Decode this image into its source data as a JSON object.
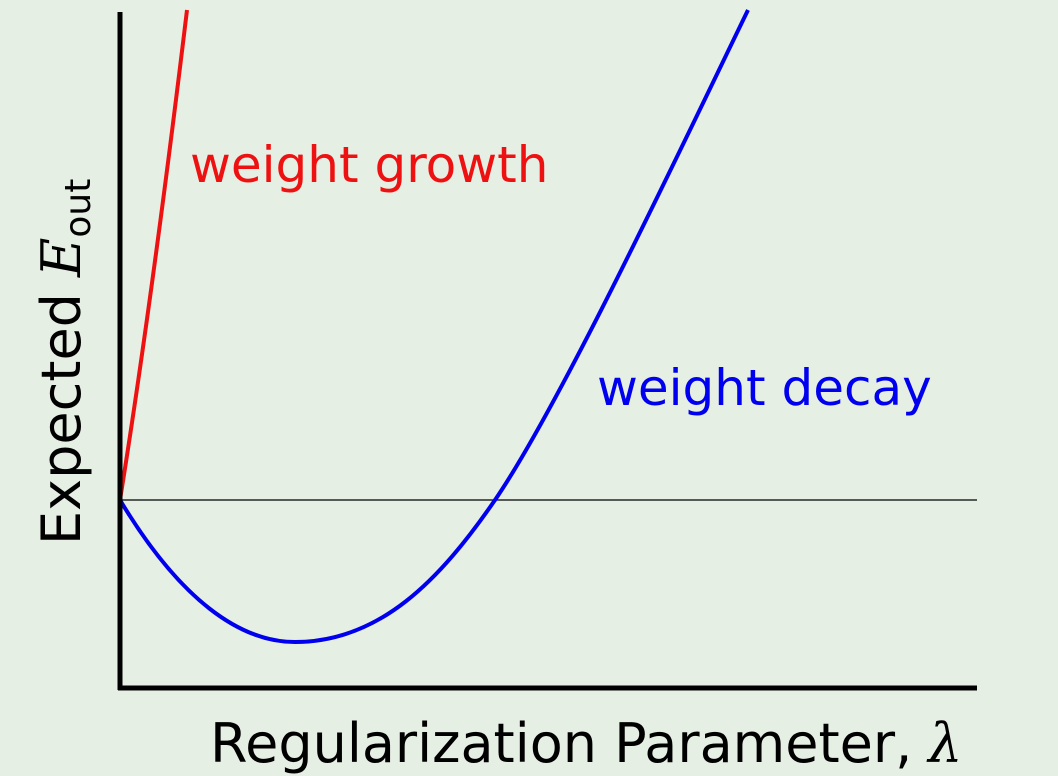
{
  "axes": {
    "x_label": "Regularization Parameter,",
    "x_symbol": "λ",
    "y_label": "Expected",
    "y_symbol": "E",
    "y_subscript": "out"
  },
  "curves": [
    {
      "label": "weight growth"
    },
    {
      "label": "weight decay"
    }
  ]
}
